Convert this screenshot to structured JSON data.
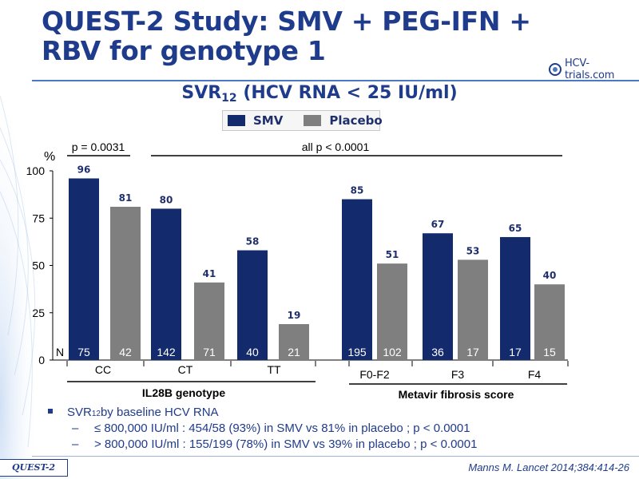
{
  "title": "QUEST-2 Study: SMV + PEG-IFN + RBV for genotype 1",
  "logo_text": "HCV-trials.com",
  "subtitle_main": "SVR",
  "subtitle_sub": "12",
  "subtitle_rest": " (HCV RNA < 25 IU/ml)",
  "colors": {
    "smv": "#132a6c",
    "placebo": "#7f7f7f",
    "accent": "#1f3b8c"
  },
  "legend": [
    {
      "label": "SMV",
      "color": "#132a6c"
    },
    {
      "label": "Placebo",
      "color": "#7f7f7f"
    }
  ],
  "chart_data": {
    "type": "bar",
    "ylabel": "%",
    "ylim": [
      0,
      100
    ],
    "yticks": [
      0,
      25,
      50,
      75,
      100
    ],
    "n_label": "N",
    "series": [
      {
        "name": "SMV",
        "values": [
          96,
          80,
          58,
          85,
          67,
          65
        ],
        "n": [
          "75",
          "142",
          "40",
          "195",
          "36",
          "17"
        ]
      },
      {
        "name": "Placebo",
        "values": [
          81,
          41,
          19,
          51,
          53,
          40
        ],
        "n": [
          "42",
          "71",
          "21",
          "102",
          "17",
          "15"
        ]
      }
    ],
    "categories": [
      "CC",
      "CT",
      "TT",
      "F0-F2",
      "F3",
      "F4"
    ],
    "groups": [
      {
        "label": "IL28B genotype",
        "categories": [
          0,
          1,
          2
        ]
      },
      {
        "label": "Metavir fibrosis score",
        "categories": [
          3,
          4,
          5
        ]
      }
    ],
    "annotations": [
      {
        "text": "p = 0.0031",
        "spans": [
          0
        ]
      },
      {
        "text": "all p < 0.0001",
        "spans": [
          1,
          5
        ]
      }
    ]
  },
  "footnotes": {
    "main_prefix": "SVR",
    "main_sub": "12",
    "main_rest": " by baseline HCV RNA",
    "items": [
      "≤ 800,000 IU/ml : 454/58 (93%) in SMV vs 81% in placebo ; p < 0.0001",
      "> 800,000 IU/ml : 155/199 (78%) in SMV vs 39% in placebo ; p < 0.0001"
    ],
    "dash": "–"
  },
  "study_tag": "QUEST-2",
  "citation": "Manns M. Lancet 2014;384:414-26"
}
